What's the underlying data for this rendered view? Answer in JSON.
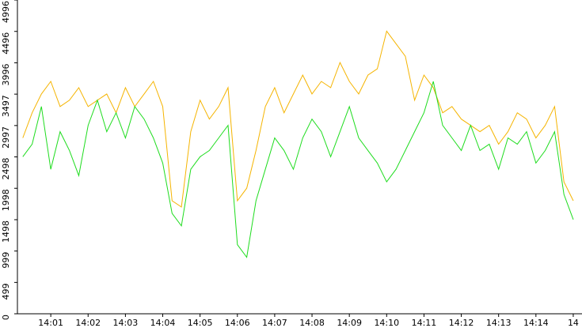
{
  "chart_data": {
    "type": "line",
    "categories": [
      null,
      null,
      null,
      "14:01",
      null,
      null,
      null,
      "14:02",
      null,
      null,
      null,
      "14:03",
      null,
      null,
      null,
      "14:04",
      null,
      null,
      null,
      "14:05",
      null,
      null,
      null,
      "14:06",
      null,
      null,
      null,
      "14:07",
      null,
      null,
      null,
      "14:08",
      null,
      null,
      null,
      "14:09",
      null,
      null,
      null,
      "14:10",
      null,
      null,
      null,
      "14:11",
      null,
      null,
      null,
      "14:12",
      null,
      null,
      null,
      "14:13",
      null,
      null,
      null,
      "14:14",
      null,
      null,
      null,
      "14"
    ],
    "series": [
      {
        "color": "#f5b400",
        "values": [
          2800,
          3200,
          3500,
          3700,
          3300,
          3400,
          3600,
          3300,
          3400,
          3500,
          3200,
          3600,
          3300,
          3500,
          3700,
          3300,
          1800,
          1700,
          2900,
          3400,
          3100,
          3300,
          3600,
          1800,
          2000,
          2600,
          3300,
          3600,
          3200,
          3500,
          3800,
          3500,
          3700,
          3600,
          4000,
          3700,
          3500,
          3800,
          3900,
          4500,
          4300,
          4100,
          3400,
          3800,
          3600,
          3200,
          3300,
          3100,
          3000,
          2900,
          3000,
          2700,
          2900,
          3200,
          3100,
          2800,
          3000,
          3300,
          2100,
          1800
        ]
      },
      {
        "color": "#1edc1e",
        "values": [
          2500,
          2700,
          3300,
          2300,
          2900,
          2600,
          2200,
          3000,
          3400,
          2900,
          3200,
          2800,
          3300,
          3100,
          2800,
          2400,
          1600,
          1400,
          2300,
          2500,
          2600,
          2800,
          3000,
          1100,
          900,
          1800,
          2300,
          2800,
          2600,
          2300,
          2800,
          3100,
          2900,
          2500,
          2900,
          3300,
          2800,
          2600,
          2400,
          2100,
          2300,
          2600,
          2900,
          3200,
          3700,
          3000,
          2800,
          2600,
          3000,
          2600,
          2700,
          2300,
          2800,
          2700,
          2900,
          2400,
          2600,
          2900,
          1900,
          1500
        ]
      }
    ],
    "ylim": [
      0,
      4996
    ],
    "yticks": [
      0,
      499,
      999,
      1498,
      1998,
      2498,
      2997,
      3497,
      3996,
      4496,
      4996
    ]
  }
}
